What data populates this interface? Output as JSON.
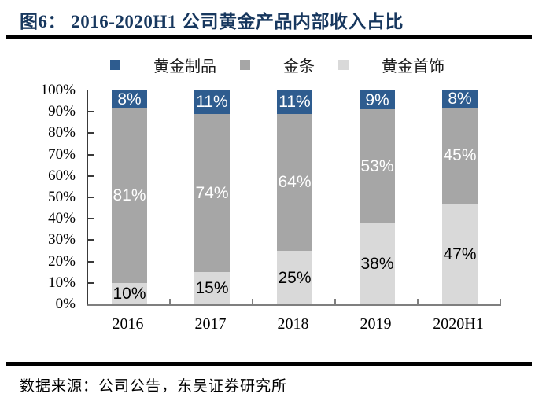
{
  "header": {
    "title": "图6： 2016-2020H1 公司黄金产品内部收入占比"
  },
  "footer": {
    "source": "数据来源：公司公告，东吴证券研究所"
  },
  "legend": [
    {
      "label": "黄金制品",
      "color": "#2e5c8f"
    },
    {
      "label": "金条",
      "color": "#a6a6a6"
    },
    {
      "label": "黄金首饰",
      "color": "#d9d9d9"
    }
  ],
  "colors": {
    "title": "#17375e",
    "y_axis": "#3a3a3a",
    "x_axis": "#7f7f7f",
    "rule": "#000000"
  },
  "chart_data": {
    "type": "bar",
    "stacked": true,
    "title": "2016-2020H1 公司黄金产品内部收入占比",
    "categories": [
      "2016",
      "2017",
      "2018",
      "2019",
      "2020H1"
    ],
    "series": [
      {
        "name": "黄金首饰",
        "color": "#d9d9d9",
        "label_color": "#000000",
        "values": [
          10,
          15,
          25,
          38,
          47
        ],
        "labels": [
          "10%",
          "15%",
          "25%",
          "38%",
          "47%"
        ]
      },
      {
        "name": "金条",
        "color": "#a6a6a6",
        "label_color": "#ffffff",
        "values": [
          81,
          74,
          64,
          53,
          45
        ],
        "labels": [
          "81%",
          "74%",
          "64%",
          "53%",
          "45%"
        ]
      },
      {
        "name": "黄金制品",
        "color": "#2e5c8f",
        "label_color": "#ffffff",
        "values": [
          8,
          11,
          11,
          9,
          8
        ],
        "labels": [
          "8%",
          "11%",
          "11%",
          "9%",
          "8%"
        ]
      }
    ],
    "ylim": [
      0,
      100
    ],
    "yticks": [
      "100%",
      "90%",
      "80%",
      "70%",
      "60%",
      "50%",
      "40%",
      "30%",
      "20%",
      "10%",
      "0%"
    ],
    "grid": false,
    "legend_position": "top"
  }
}
